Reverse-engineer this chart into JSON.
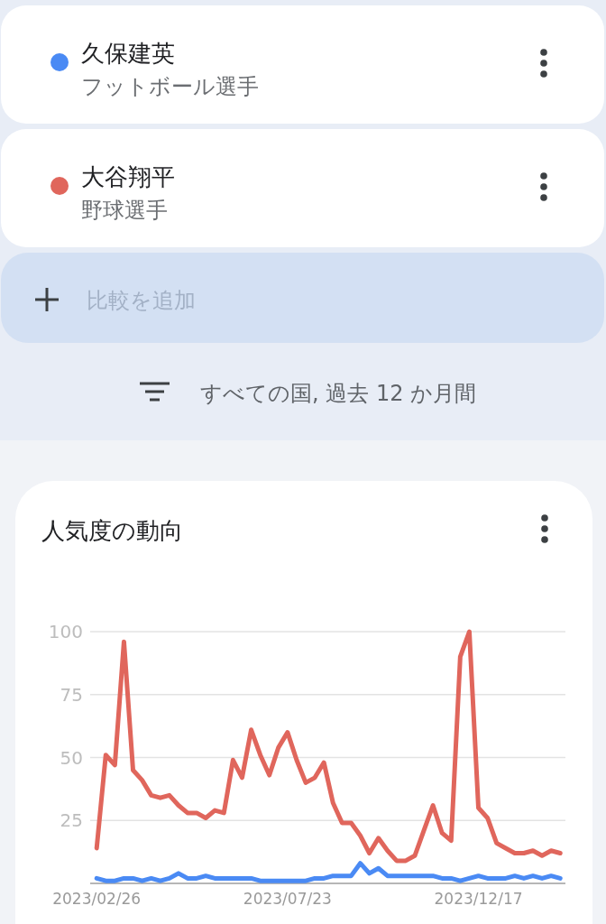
{
  "chart_data": {
    "type": "line",
    "title": "人気度の動向",
    "subtitle": "すべての国, 過去 12 か月間",
    "annotations": [
      "フットボール選手",
      "野球選手",
      "比較を追加"
    ],
    "x": [
      "2023-02-26",
      "2023-03-05",
      "2023-03-12",
      "2023-03-19",
      "2023-03-26",
      "2023-04-02",
      "2023-04-09",
      "2023-04-16",
      "2023-04-23",
      "2023-04-30",
      "2023-05-07",
      "2023-05-14",
      "2023-05-21",
      "2023-05-28",
      "2023-06-04",
      "2023-06-11",
      "2023-06-18",
      "2023-06-25",
      "2023-07-02",
      "2023-07-09",
      "2023-07-16",
      "2023-07-23",
      "2023-07-30",
      "2023-08-06",
      "2023-08-13",
      "2023-08-20",
      "2023-08-27",
      "2023-09-03",
      "2023-09-10",
      "2023-09-17",
      "2023-09-24",
      "2023-10-01",
      "2023-10-08",
      "2023-10-15",
      "2023-10-22",
      "2023-10-29",
      "2023-11-05",
      "2023-11-12",
      "2023-11-19",
      "2023-11-26",
      "2023-12-03",
      "2023-12-10",
      "2023-12-17",
      "2023-12-24",
      "2023-12-31",
      "2024-01-07",
      "2024-01-14",
      "2024-01-21",
      "2024-01-28",
      "2024-02-04",
      "2024-02-11",
      "2024-02-18"
    ],
    "series": [
      {
        "name": "久保建英",
        "color": "#4a8af4",
        "values": [
          2,
          1,
          1,
          2,
          2,
          1,
          2,
          1,
          2,
          4,
          2,
          2,
          3,
          2,
          2,
          2,
          2,
          2,
          1,
          1,
          1,
          1,
          1,
          1,
          2,
          2,
          3,
          3,
          3,
          8,
          4,
          6,
          3,
          3,
          3,
          3,
          3,
          3,
          2,
          2,
          1,
          2,
          3,
          2,
          2,
          2,
          3,
          2,
          3,
          2,
          3,
          2
        ]
      },
      {
        "name": "大谷翔平",
        "color": "#e0665c",
        "values": [
          14,
          51,
          47,
          96,
          45,
          41,
          35,
          34,
          35,
          31,
          28,
          28,
          26,
          29,
          28,
          49,
          42,
          61,
          51,
          43,
          54,
          60,
          49,
          40,
          42,
          48,
          32,
          24,
          24,
          19,
          12,
          18,
          13,
          9,
          9,
          11,
          21,
          31,
          20,
          17,
          90,
          100,
          30,
          26,
          16,
          14,
          12,
          12,
          13,
          11,
          13,
          12
        ]
      }
    ],
    "xlim": [
      "2023-02-21",
      "2024-02-22"
    ],
    "ylim": [
      0,
      100
    ],
    "xticks": [
      {
        "value": "2023-02-26",
        "label": "2023/02/26"
      },
      {
        "value": "2023-07-23",
        "label": "2023/07/23"
      },
      {
        "value": "2023-12-17",
        "label": "2023/12/17"
      }
    ],
    "yticks": [
      25,
      50,
      75,
      100
    ],
    "grid": "y",
    "legend": "top"
  }
}
